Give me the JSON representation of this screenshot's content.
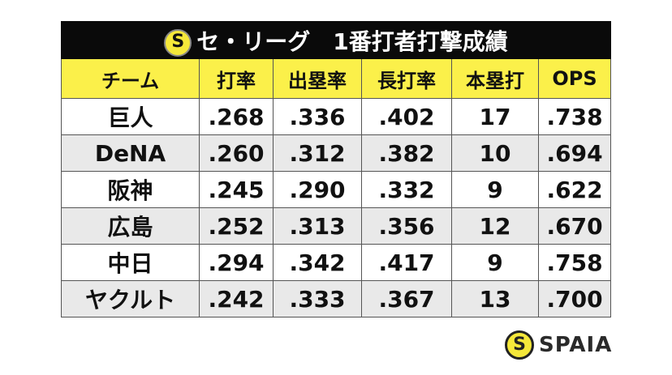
{
  "title": "セ・リーグ　1番打者打撃成績",
  "headers": [
    "チーム",
    "打率",
    "出塁率",
    "長打率",
    "本塁打",
    "OPS"
  ],
  "rows": [
    [
      "巨人",
      ".268",
      ".336",
      ".402",
      "17",
      ".738"
    ],
    [
      "DeNA",
      ".260",
      ".312",
      ".382",
      "10",
      ".694"
    ],
    [
      "阪神",
      ".245",
      ".290",
      ".332",
      "9",
      ".622"
    ],
    [
      "広島",
      ".252",
      ".313",
      ".356",
      "12",
      ".670"
    ],
    [
      "中日",
      ".294",
      ".342",
      ".417",
      "9",
      ".758"
    ],
    [
      "ヤクルト",
      ".242",
      ".333",
      ".367",
      "13",
      ".700"
    ]
  ],
  "brand": "SPAIA",
  "colors": {
    "title_bg": "#0a0a0a",
    "header_bg": "#fbf04a",
    "alt_row": "#e9e9e9"
  }
}
